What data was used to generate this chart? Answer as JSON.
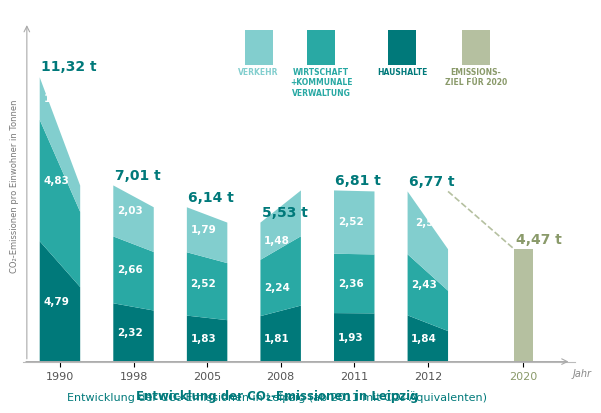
{
  "years": [
    "1990",
    "1998",
    "2005",
    "2008",
    "2011",
    "2012",
    "2020"
  ],
  "totals": [
    11.32,
    7.01,
    6.14,
    5.53,
    6.81,
    6.77,
    4.47
  ],
  "haushalte": [
    4.79,
    2.32,
    1.83,
    1.81,
    1.93,
    1.84,
    null
  ],
  "wirtschaft": [
    4.83,
    2.66,
    2.52,
    2.24,
    2.36,
    2.43,
    null
  ],
  "verkehr": [
    1.69,
    2.03,
    1.79,
    1.48,
    2.52,
    2.5,
    null
  ],
  "color_dark": "#00797a",
  "color_mid": "#29a9a4",
  "color_light": "#82cece",
  "color_goal": "#b5c0a0",
  "color_goal_text": "#8a9a6a",
  "color_teal_text": "#00797a",
  "color_line": "#82cece",
  "background": "#ffffff",
  "title": "Entwicklung der CO₂-Emissionen in Leipzig",
  "title_suffix": " (ab 2011 mit CO₂-Äquivalenten)",
  "ylabel": "CO₂-Emissionen pro Einwohner in Tonnen",
  "xlabel": "Jahr",
  "legend_labels": [
    "VERKEHR",
    "WIRTSCHAFT\n+KOMMUNALE\nVERWALTUNG",
    "HAUSHALTE",
    "EMISSIONS-\nZIEL FÜR 2020"
  ],
  "legend_colors_text": [
    "#82cece",
    "#29a9a4",
    "#00797a",
    "#8a9a6a"
  ],
  "total_label_fontsize": 10,
  "bar_label_fontsize": 7.5,
  "year_label_fontsize": 8,
  "ylim": [
    0,
    14.0
  ],
  "bar_width": 0.55,
  "slant": 0.35,
  "x_positions": [
    0,
    1,
    2,
    3,
    4,
    5,
    6.3
  ]
}
